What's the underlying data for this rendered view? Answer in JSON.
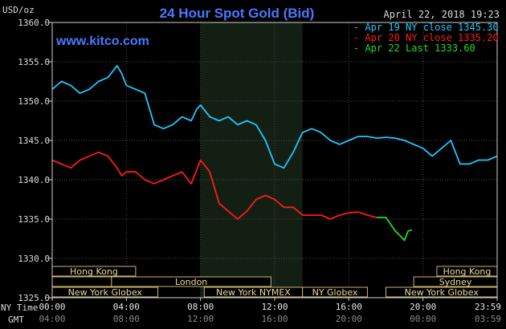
{
  "header": {
    "title": "24 Hour Spot Gold (Bid)",
    "date": "April 22, 2018 19:23",
    "currency": "USD/oz",
    "website": "www.kitco.com"
  },
  "legend": [
    {
      "label": "Apr 19 NY close 1345.30",
      "color": "#1fc8ff"
    },
    {
      "label": "Apr 20 NY close 1335.20",
      "color": "#ff1a1a"
    },
    {
      "label": "Apr 22 Last 1333.60",
      "color": "#23d923"
    }
  ],
  "sessions": {
    "row1": [
      {
        "label": "Hong Kong",
        "start": 0,
        "end": 4.5
      },
      {
        "label": "Hong Kong",
        "start": 20.75,
        "end": 24
      }
    ],
    "row2": [
      {
        "label": "",
        "start": 0,
        "end": 3.2
      },
      {
        "label": "London",
        "start": 3.2,
        "end": 11.8
      },
      {
        "label": "Sydney",
        "start": 19.5,
        "end": 24
      }
    ],
    "row3": [
      {
        "label": "New York Globex",
        "start": 0,
        "end": 5.7
      },
      {
        "label": "New York NYMEX",
        "start": 8.2,
        "end": 13.5
      },
      {
        "label": "NY Globex",
        "start": 13.5,
        "end": 17
      },
      {
        "label": "New York Globex",
        "start": 18,
        "end": 24
      }
    ]
  },
  "footer": {
    "ny_time_label": "NY Time",
    "gmt_label": "GMT"
  },
  "chart_data": {
    "type": "line",
    "title": "24 Hour Spot Gold (Bid)",
    "ylabel": "USD/oz",
    "ylim": [
      1325,
      1360
    ],
    "yticks": [
      "1325.0",
      "1330.0",
      "1335.0",
      "1340.0",
      "1345.0",
      "1350.0",
      "1355.0",
      "1360.0"
    ],
    "ytick_values": [
      1325,
      1330,
      1335,
      1340,
      1345,
      1350,
      1355,
      1360
    ],
    "xlim": [
      0,
      24
    ],
    "xtick_values": [
      0,
      4,
      8,
      12,
      16,
      20,
      24
    ],
    "xticks_ny": [
      "00:00",
      "04:00",
      "08:00",
      "12:00",
      "16:00",
      "20:00",
      "23:59"
    ],
    "xticks_gmt": [
      "04:00",
      "08:00",
      "12:00",
      "16:00",
      "20:00",
      "00:00",
      "03:59"
    ],
    "grid": true,
    "shaded_ranges": [
      [
        8,
        13.5
      ]
    ],
    "series": [
      {
        "name": "Apr 19 NY close 1345.30",
        "color": "#1fc8ff",
        "x": [
          0,
          0.5,
          1,
          1.5,
          2,
          2.5,
          3,
          3.5,
          3.75,
          4,
          4.5,
          5,
          5.5,
          6,
          6.5,
          7,
          7.5,
          7.8,
          8,
          8.5,
          9,
          9.5,
          10,
          10.5,
          11,
          11.5,
          12,
          12.5,
          13,
          13.5,
          14,
          14.5,
          15,
          15.5,
          16,
          16.5,
          17,
          17.5,
          18,
          18.5,
          19,
          19.5,
          20,
          20.5,
          21,
          21.5,
          22,
          22.5,
          23,
          23.5,
          24
        ],
        "y": [
          1351.5,
          1352.5,
          1352,
          1351,
          1351.5,
          1352.5,
          1353,
          1354.5,
          1353.5,
          1352,
          1351.5,
          1351,
          1347,
          1346.5,
          1347,
          1348,
          1347.5,
          1349,
          1349.5,
          1348,
          1347.5,
          1348,
          1347,
          1347.5,
          1347,
          1345,
          1342,
          1341.5,
          1343.5,
          1346,
          1346.5,
          1346,
          1345,
          1344.5,
          1345,
          1345.5,
          1345.5,
          1345.3,
          1345.4,
          1345.3,
          1345,
          1344.5,
          1344,
          1343,
          1344,
          1345,
          1342,
          1342,
          1342.5,
          1342.5,
          1343
        ]
      },
      {
        "name": "Apr 20 NY close 1335.20",
        "color": "#ff1a1a",
        "x": [
          0,
          0.5,
          1,
          1.5,
          2,
          2.5,
          3,
          3.5,
          3.75,
          4,
          4.5,
          5,
          5.5,
          6,
          6.5,
          7,
          7.5,
          8,
          8.5,
          9,
          9.5,
          10,
          10.5,
          11,
          11.5,
          12,
          12.5,
          13,
          13.5,
          14,
          14.5,
          15,
          15.5,
          16,
          16.5,
          17,
          17.5
        ],
        "y": [
          1342.5,
          1342,
          1341.5,
          1342.5,
          1343,
          1343.5,
          1343,
          1341.5,
          1340.5,
          1341,
          1341,
          1340,
          1339.5,
          1340,
          1340.5,
          1341,
          1339.5,
          1342.5,
          1341,
          1337,
          1336,
          1335,
          1336,
          1337.5,
          1338,
          1337.5,
          1336.5,
          1336.5,
          1335.5,
          1335.5,
          1335.5,
          1335,
          1335.5,
          1335.8,
          1335.9,
          1335.5,
          1335.2
        ]
      },
      {
        "name": "Apr 22 Last 1333.60",
        "color": "#23d923",
        "x": [
          17.5,
          18,
          18.5,
          18.8,
          19,
          19.2,
          19.4
        ],
        "y": [
          1335.2,
          1335.2,
          1333.5,
          1332.8,
          1332.3,
          1333.5,
          1333.6
        ]
      }
    ]
  }
}
